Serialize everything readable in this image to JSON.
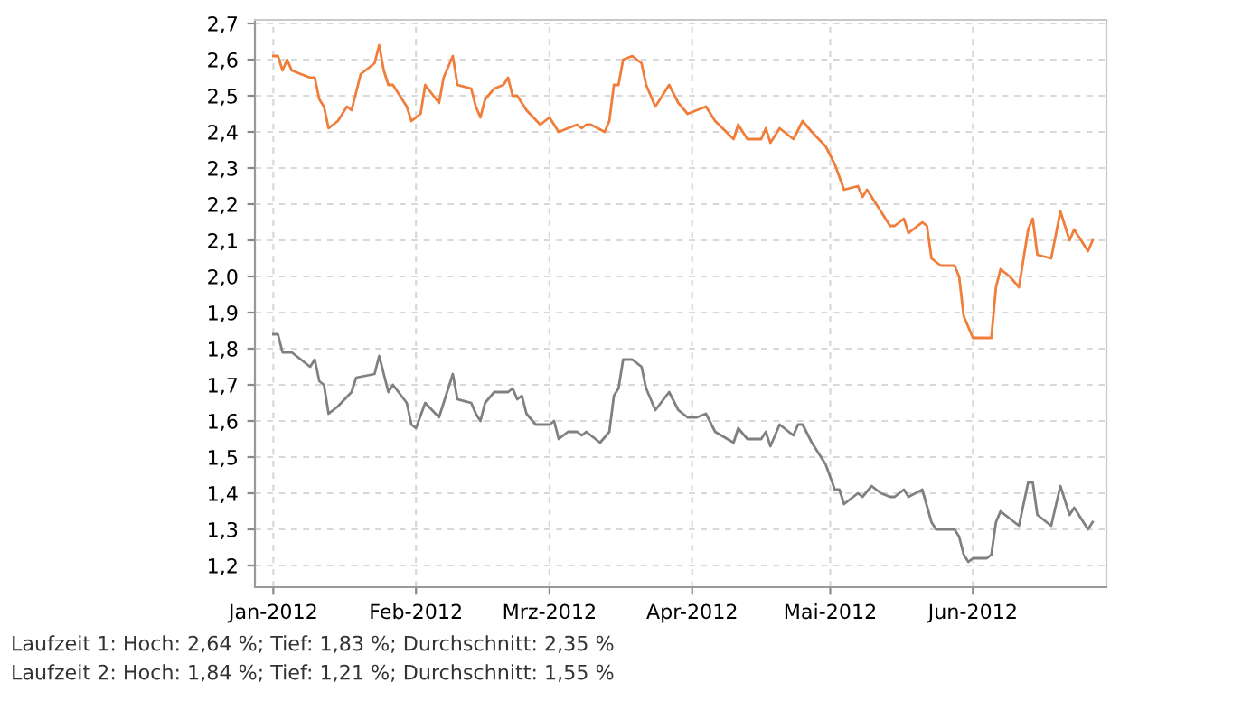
{
  "chart_data": {
    "type": "line",
    "series": [
      {
        "color": "#f07d3a",
        "x": [
          "2012-01-01",
          "2012-01-02",
          "2012-01-03",
          "2012-01-04",
          "2012-01-05",
          "2012-01-09",
          "2012-01-10",
          "2012-01-11",
          "2012-01-12",
          "2012-01-13",
          "2012-01-15",
          "2012-01-17",
          "2012-01-18",
          "2012-01-20",
          "2012-01-23",
          "2012-01-24",
          "2012-01-25",
          "2012-01-26",
          "2012-01-27",
          "2012-01-30",
          "2012-01-31",
          "2012-02-02",
          "2012-02-03",
          "2012-02-06",
          "2012-02-07",
          "2012-02-09",
          "2012-02-10",
          "2012-02-13",
          "2012-02-14",
          "2012-02-15",
          "2012-02-16",
          "2012-02-18",
          "2012-02-20",
          "2012-02-21",
          "2012-02-22",
          "2012-02-23",
          "2012-02-25",
          "2012-02-28",
          "2012-03-01",
          "2012-03-03",
          "2012-03-05",
          "2012-03-07",
          "2012-03-08",
          "2012-03-09",
          "2012-03-10",
          "2012-03-13",
          "2012-03-14",
          "2012-03-15",
          "2012-03-16",
          "2012-03-17",
          "2012-03-19",
          "2012-03-21",
          "2012-03-22",
          "2012-03-24",
          "2012-03-27",
          "2012-03-29",
          "2012-03-31",
          "2012-04-02",
          "2012-04-04",
          "2012-04-06",
          "2012-04-10",
          "2012-04-11",
          "2012-04-13",
          "2012-04-16",
          "2012-04-17",
          "2012-04-18",
          "2012-04-20",
          "2012-04-23",
          "2012-04-25",
          "2012-04-27",
          "2012-04-30",
          "2012-05-02",
          "2012-05-04",
          "2012-05-07",
          "2012-05-08",
          "2012-05-09",
          "2012-05-12",
          "2012-05-14",
          "2012-05-15",
          "2012-05-17",
          "2012-05-18",
          "2012-05-21",
          "2012-05-22",
          "2012-05-23",
          "2012-05-25",
          "2012-05-28",
          "2012-05-29",
          "2012-05-30",
          "2012-06-01",
          "2012-06-05",
          "2012-06-06",
          "2012-06-07",
          "2012-06-09",
          "2012-06-11",
          "2012-06-13",
          "2012-06-14",
          "2012-06-15",
          "2012-06-18",
          "2012-06-20",
          "2012-06-22",
          "2012-06-23",
          "2012-06-26",
          "2012-06-27"
        ],
        "values": [
          2.61,
          2.61,
          2.57,
          2.6,
          2.57,
          2.55,
          2.55,
          2.49,
          2.47,
          2.41,
          2.43,
          2.47,
          2.46,
          2.56,
          2.59,
          2.64,
          2.57,
          2.53,
          2.53,
          2.47,
          2.43,
          2.45,
          2.53,
          2.48,
          2.55,
          2.61,
          2.53,
          2.52,
          2.47,
          2.44,
          2.49,
          2.52,
          2.53,
          2.55,
          2.5,
          2.5,
          2.46,
          2.42,
          2.44,
          2.4,
          2.41,
          2.42,
          2.41,
          2.42,
          2.42,
          2.4,
          2.43,
          2.53,
          2.53,
          2.6,
          2.61,
          2.59,
          2.53,
          2.47,
          2.53,
          2.48,
          2.45,
          2.46,
          2.47,
          2.43,
          2.38,
          2.42,
          2.38,
          2.38,
          2.41,
          2.37,
          2.41,
          2.38,
          2.43,
          2.4,
          2.36,
          2.31,
          2.24,
          2.25,
          2.22,
          2.24,
          2.18,
          2.14,
          2.14,
          2.16,
          2.12,
          2.15,
          2.14,
          2.05,
          2.03,
          2.03,
          2.0,
          1.89,
          1.83,
          1.83,
          1.97,
          2.02,
          2.0,
          1.97,
          2.13,
          2.16,
          2.06,
          2.05,
          2.18,
          2.1,
          2.13,
          2.07,
          2.1
        ]
      },
      {
        "color": "#808080",
        "x": [
          "2012-01-01",
          "2012-01-02",
          "2012-01-03",
          "2012-01-05",
          "2012-01-09",
          "2012-01-10",
          "2012-01-11",
          "2012-01-12",
          "2012-01-13",
          "2012-01-15",
          "2012-01-18",
          "2012-01-19",
          "2012-01-23",
          "2012-01-24",
          "2012-01-25",
          "2012-01-26",
          "2012-01-27",
          "2012-01-30",
          "2012-01-31",
          "2012-02-01",
          "2012-02-03",
          "2012-02-06",
          "2012-02-09",
          "2012-02-10",
          "2012-02-13",
          "2012-02-14",
          "2012-02-15",
          "2012-02-16",
          "2012-02-18",
          "2012-02-21",
          "2012-02-22",
          "2012-02-23",
          "2012-02-24",
          "2012-02-25",
          "2012-02-27",
          "2012-03-01",
          "2012-03-02",
          "2012-03-03",
          "2012-03-05",
          "2012-03-07",
          "2012-03-08",
          "2012-03-09",
          "2012-03-12",
          "2012-03-14",
          "2012-03-15",
          "2012-03-16",
          "2012-03-17",
          "2012-03-19",
          "2012-03-21",
          "2012-03-22",
          "2012-03-24",
          "2012-03-27",
          "2012-03-29",
          "2012-03-31",
          "2012-04-02",
          "2012-04-04",
          "2012-04-06",
          "2012-04-10",
          "2012-04-11",
          "2012-04-13",
          "2012-04-16",
          "2012-04-17",
          "2012-04-18",
          "2012-04-20",
          "2012-04-23",
          "2012-04-24",
          "2012-04-25",
          "2012-04-27",
          "2012-04-30",
          "2012-05-02",
          "2012-05-03",
          "2012-05-04",
          "2012-05-07",
          "2012-05-08",
          "2012-05-10",
          "2012-05-12",
          "2012-05-14",
          "2012-05-15",
          "2012-05-17",
          "2012-05-18",
          "2012-05-21",
          "2012-05-23",
          "2012-05-24",
          "2012-05-28",
          "2012-05-29",
          "2012-05-30",
          "2012-05-31",
          "2012-06-01",
          "2012-06-04",
          "2012-06-05",
          "2012-06-06",
          "2012-06-07",
          "2012-06-09",
          "2012-06-11",
          "2012-06-13",
          "2012-06-14",
          "2012-06-15",
          "2012-06-18",
          "2012-06-20",
          "2012-06-22",
          "2012-06-23",
          "2012-06-26",
          "2012-06-27"
        ],
        "values": [
          1.84,
          1.84,
          1.79,
          1.79,
          1.75,
          1.77,
          1.71,
          1.7,
          1.62,
          1.64,
          1.68,
          1.72,
          1.73,
          1.78,
          1.73,
          1.68,
          1.7,
          1.65,
          1.59,
          1.58,
          1.65,
          1.61,
          1.73,
          1.66,
          1.65,
          1.62,
          1.6,
          1.65,
          1.68,
          1.68,
          1.69,
          1.66,
          1.67,
          1.62,
          1.59,
          1.59,
          1.6,
          1.55,
          1.57,
          1.57,
          1.56,
          1.57,
          1.54,
          1.57,
          1.67,
          1.69,
          1.77,
          1.77,
          1.75,
          1.69,
          1.63,
          1.68,
          1.63,
          1.61,
          1.61,
          1.62,
          1.57,
          1.54,
          1.58,
          1.55,
          1.55,
          1.57,
          1.53,
          1.59,
          1.56,
          1.59,
          1.59,
          1.54,
          1.48,
          1.41,
          1.41,
          1.37,
          1.4,
          1.39,
          1.42,
          1.4,
          1.39,
          1.39,
          1.41,
          1.39,
          1.41,
          1.32,
          1.3,
          1.3,
          1.28,
          1.23,
          1.21,
          1.22,
          1.22,
          1.23,
          1.32,
          1.35,
          1.33,
          1.31,
          1.43,
          1.43,
          1.34,
          1.31,
          1.42,
          1.34,
          1.36,
          1.3,
          1.32
        ]
      }
    ],
    "xlim": [
      "2011-12-28",
      "2012-06-30"
    ],
    "xticks": [
      {
        "value": "2012-01-01",
        "label": "Jan-2012"
      },
      {
        "value": "2012-02-01",
        "label": "Feb-2012"
      },
      {
        "value": "2012-03-01",
        "label": "Mrz-2012"
      },
      {
        "value": "2012-04-01",
        "label": "Apr-2012"
      },
      {
        "value": "2012-05-01",
        "label": "Mai-2012"
      },
      {
        "value": "2012-06-01",
        "label": "Jun-2012"
      }
    ],
    "ylim": [
      1.14,
      2.71
    ],
    "yticks": [
      {
        "value": 1.2,
        "label": "1,2"
      },
      {
        "value": 1.3,
        "label": "1,3"
      },
      {
        "value": 1.4,
        "label": "1,4"
      },
      {
        "value": 1.5,
        "label": "1,5"
      },
      {
        "value": 1.6,
        "label": "1,6"
      },
      {
        "value": 1.7,
        "label": "1,7"
      },
      {
        "value": 1.8,
        "label": "1,8"
      },
      {
        "value": 1.9,
        "label": "1,9"
      },
      {
        "value": 2.0,
        "label": "2,0"
      },
      {
        "value": 2.1,
        "label": "2,1"
      },
      {
        "value": 2.2,
        "label": "2,2"
      },
      {
        "value": 2.3,
        "label": "2,3"
      },
      {
        "value": 2.4,
        "label": "2,4"
      },
      {
        "value": 2.5,
        "label": "2,5"
      },
      {
        "value": 2.6,
        "label": "2,6"
      },
      {
        "value": 2.7,
        "label": "2,7"
      }
    ],
    "grid": true,
    "line_style": "solid",
    "marker": "none",
    "annotations": [
      "Laufzeit 1: Hoch: 2,64 %; Tief: 1,83 %; Durchschnitt: 2,35 %",
      "Laufzeit 2: Hoch: 1,84 %; Tief: 1,21 %; Durchschnitt: 1,55 %"
    ]
  }
}
